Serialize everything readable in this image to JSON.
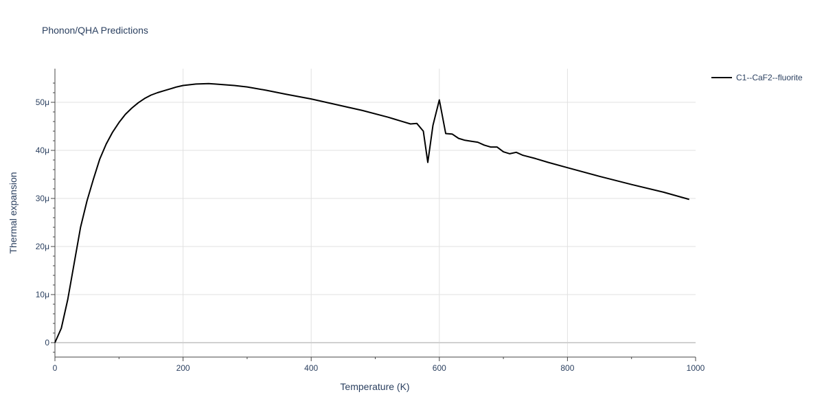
{
  "chart_data": {
    "type": "line",
    "title": "Phonon/QHA Predictions",
    "xlabel": "Temperature (K)",
    "ylabel": "Thermal expansion",
    "xlim": [
      0,
      1000
    ],
    "ylim": [
      -3e-06,
      5.7e-05
    ],
    "grid": true,
    "legend_position": "top-right",
    "x_ticks": [
      0,
      200,
      400,
      600,
      800,
      1000
    ],
    "x_tick_labels": [
      "0",
      "200",
      "400",
      "600",
      "800",
      "1000"
    ],
    "y_ticks": [
      0,
      1e-05,
      2e-05,
      3e-05,
      4e-05,
      5e-05
    ],
    "y_tick_labels": [
      "0",
      "10μ",
      "20μ",
      "30μ",
      "40μ",
      "50μ"
    ],
    "series": [
      {
        "name": "C1--CaF2--fluorite",
        "color": "#000000",
        "x": [
          0,
          10,
          20,
          30,
          40,
          50,
          60,
          70,
          80,
          90,
          100,
          110,
          120,
          130,
          140,
          150,
          160,
          170,
          180,
          190,
          200,
          220,
          240,
          250,
          280,
          300,
          330,
          360,
          400,
          440,
          480,
          520,
          530,
          540,
          555,
          565,
          575,
          582,
          590,
          600,
          610,
          620,
          630,
          640,
          650,
          660,
          670,
          680,
          690,
          700,
          710,
          720,
          730,
          750,
          770,
          800,
          850,
          900,
          950,
          990
        ],
        "y": [
          0,
          3e-06,
          9e-06,
          1.65e-05,
          2.4e-05,
          2.95e-05,
          3.4e-05,
          3.82e-05,
          4.13e-05,
          4.38e-05,
          4.58e-05,
          4.75e-05,
          4.88e-05,
          4.99e-05,
          5.08e-05,
          5.15e-05,
          5.2e-05,
          5.24e-05,
          5.28e-05,
          5.32e-05,
          5.35e-05,
          5.38e-05,
          5.39e-05,
          5.38e-05,
          5.35e-05,
          5.32e-05,
          5.25e-05,
          5.17e-05,
          5.07e-05,
          4.95e-05,
          4.83e-05,
          4.69e-05,
          4.65e-05,
          4.61e-05,
          4.55e-05,
          4.56e-05,
          4.4e-05,
          3.75e-05,
          4.52e-05,
          5.05e-05,
          4.35e-05,
          4.34e-05,
          4.25e-05,
          4.21e-05,
          4.19e-05,
          4.17e-05,
          4.11e-05,
          4.07e-05,
          4.07e-05,
          3.97e-05,
          3.93e-05,
          3.96e-05,
          3.9e-05,
          3.83e-05,
          3.75e-05,
          3.64e-05,
          3.46e-05,
          3.29e-05,
          3.13e-05,
          2.98e-05
        ]
      }
    ]
  }
}
